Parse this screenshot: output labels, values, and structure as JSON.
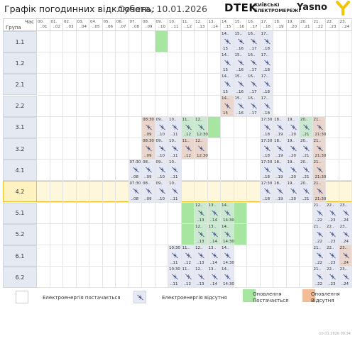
{
  "header": {
    "title": "Графік погодинних відключень:",
    "date": "Субота, 10.01.2026",
    "dtek": "DTEK",
    "kyiv_line1": "КИЇВСЬКІ",
    "kyiv_line2": "ЕЛЕКТРОМЕРЕЖІ",
    "yasno": "Yasno"
  },
  "table": {
    "col_header_top": "Час",
    "col_header_bottom": "Група",
    "hours": [
      {
        "a": "00.",
        "b": "..01"
      },
      {
        "a": "01.",
        "b": "..02"
      },
      {
        "a": "02.",
        "b": "..03"
      },
      {
        "a": "03.",
        "b": "..04"
      },
      {
        "a": "04.",
        "b": "..05"
      },
      {
        "a": "05.",
        "b": "..06"
      },
      {
        "a": "06.",
        "b": "..07"
      },
      {
        "a": "07.",
        "b": "..08"
      },
      {
        "a": "08.",
        "b": "..09"
      },
      {
        "a": "09.",
        "b": "..10"
      },
      {
        "a": "10.",
        "b": "..11"
      },
      {
        "a": "11.",
        "b": "..12"
      },
      {
        "a": "12.",
        "b": "..13"
      },
      {
        "a": "13.",
        "b": "..14"
      },
      {
        "a": "14.",
        "b": "..15"
      },
      {
        "a": "15.",
        "b": "..16"
      },
      {
        "a": "16.",
        "b": "..17"
      },
      {
        "a": "17.",
        "b": "..18"
      },
      {
        "a": "18.",
        "b": "..19"
      },
      {
        "a": "19.",
        "b": "..20"
      },
      {
        "a": "20.",
        "b": "..21"
      },
      {
        "a": "21.",
        "b": "..22"
      },
      {
        "a": "22.",
        "b": "..23"
      },
      {
        "a": "23.",
        "b": "..24"
      }
    ],
    "groups": [
      {
        "label": "1.1",
        "highlight": false,
        "cells": [
          {
            "h": 9,
            "t": "pg"
          },
          {
            "h": 14,
            "t": "off",
            "tl": "14..",
            "bl": "15"
          },
          {
            "h": 15,
            "t": "off",
            "tl": "15..",
            "bl": "..16"
          },
          {
            "h": 16,
            "t": "off",
            "tl": "16..",
            "bl": "..17"
          },
          {
            "h": 17,
            "t": "off",
            "tl": "17..",
            "bl": "..18"
          }
        ]
      },
      {
        "label": "1.2",
        "highlight": false,
        "cells": [
          {
            "h": 14,
            "t": "off",
            "tl": "14..",
            "bl": "15"
          },
          {
            "h": 15,
            "t": "off",
            "tl": "15..",
            "bl": "..16"
          },
          {
            "h": 16,
            "t": "off",
            "tl": "16..",
            "bl": "..17"
          },
          {
            "h": 17,
            "t": "off",
            "tl": "17..",
            "bl": "..18"
          }
        ]
      },
      {
        "label": "2.1",
        "highlight": false,
        "cells": [
          {
            "h": 14,
            "t": "off",
            "tl": "14..",
            "bl": "15"
          },
          {
            "h": 15,
            "t": "off",
            "tl": "15..",
            "bl": "..16"
          },
          {
            "h": 16,
            "t": "off",
            "tl": "16..",
            "bl": "..17"
          },
          {
            "h": 17,
            "t": "off",
            "tl": "17..",
            "bl": "..18"
          }
        ]
      },
      {
        "label": "2.2",
        "highlight": false,
        "cells": [
          {
            "h": 14,
            "t": "po off",
            "tl": "14..",
            "bl": "15"
          },
          {
            "h": 15,
            "t": "off",
            "tl": "15..",
            "bl": "..16"
          },
          {
            "h": 16,
            "t": "off",
            "tl": "16..",
            "bl": "..17"
          },
          {
            "h": 17,
            "t": "off",
            "tl": "17..",
            "bl": "..18"
          }
        ]
      },
      {
        "label": "3.1",
        "highlight": false,
        "cells": [
          {
            "h": 8,
            "t": "po off",
            "tl": "08:30",
            "bl": "..09"
          },
          {
            "h": 9,
            "t": "off",
            "tl": "09..",
            "bl": "..10"
          },
          {
            "h": 10,
            "t": "off",
            "tl": "10..",
            "bl": "..11"
          },
          {
            "h": 11,
            "t": "pg off",
            "tl": "11..",
            "bl": "..12"
          },
          {
            "h": 12,
            "t": "pg off",
            "tl": "12..",
            "bl": "12:30"
          },
          {
            "h": 13,
            "t": "pg"
          },
          {
            "h": 17,
            "t": "off",
            "tl": "17:30",
            "bl": "..18"
          },
          {
            "h": 18,
            "t": "off",
            "tl": "18..",
            "bl": "..19"
          },
          {
            "h": 19,
            "t": "off",
            "tl": "19..",
            "bl": "..20"
          },
          {
            "h": 20,
            "t": "pg off",
            "tl": "20..",
            "bl": "..21"
          },
          {
            "h": 21,
            "t": "po off",
            "tl": "21..",
            "bl": "21:30"
          }
        ]
      },
      {
        "label": "3.2",
        "highlight": false,
        "cells": [
          {
            "h": 8,
            "t": "po off",
            "tl": "08:30",
            "bl": "..09"
          },
          {
            "h": 9,
            "t": "off",
            "tl": "09..",
            "bl": "..10"
          },
          {
            "h": 10,
            "t": "off",
            "tl": "10..",
            "bl": "..11"
          },
          {
            "h": 11,
            "t": "po off",
            "tl": "11..",
            "bl": "..12"
          },
          {
            "h": 12,
            "t": "po off",
            "tl": "12..",
            "bl": "12:30"
          },
          {
            "h": 17,
            "t": "off",
            "tl": "17:30",
            "bl": "..18"
          },
          {
            "h": 18,
            "t": "off",
            "tl": "18..",
            "bl": "..19"
          },
          {
            "h": 19,
            "t": "off",
            "tl": "19..",
            "bl": "..20"
          },
          {
            "h": 20,
            "t": "off",
            "tl": "20..",
            "bl": "..21"
          },
          {
            "h": 21,
            "t": "po off",
            "tl": "21..",
            "bl": "21:30"
          }
        ]
      },
      {
        "label": "4.1",
        "highlight": false,
        "cells": [
          {
            "h": 7,
            "t": "off",
            "tl": "07:30",
            "bl": "..08"
          },
          {
            "h": 8,
            "t": "off",
            "tl": "08..",
            "bl": "..09"
          },
          {
            "h": 9,
            "t": "off",
            "tl": "09..",
            "bl": "..10"
          },
          {
            "h": 10,
            "t": "off",
            "tl": "10..",
            "bl": "..11"
          },
          {
            "h": 17,
            "t": "off",
            "tl": "17:30",
            "bl": "..18"
          },
          {
            "h": 18,
            "t": "off",
            "tl": "18..",
            "bl": "..19"
          },
          {
            "h": 19,
            "t": "off",
            "tl": "19..",
            "bl": "..20"
          },
          {
            "h": 20,
            "t": "off",
            "tl": "20..",
            "bl": "..21"
          },
          {
            "h": 21,
            "t": "po off",
            "tl": "21..",
            "bl": "21:30"
          }
        ]
      },
      {
        "label": "4.2",
        "highlight": true,
        "cells": [
          {
            "h": 7,
            "t": "off",
            "tl": "07:30",
            "bl": "..08"
          },
          {
            "h": 8,
            "t": "off",
            "tl": "08..",
            "bl": "..09"
          },
          {
            "h": 9,
            "t": "off",
            "tl": "09..",
            "bl": "..10"
          },
          {
            "h": 10,
            "t": "off",
            "tl": "10..",
            "bl": "..11"
          },
          {
            "h": 17,
            "t": "off",
            "tl": "17:30",
            "bl": "..18"
          },
          {
            "h": 18,
            "t": "off",
            "tl": "18..",
            "bl": "..19"
          },
          {
            "h": 19,
            "t": "off",
            "tl": "19..",
            "bl": "..20"
          },
          {
            "h": 20,
            "t": "off",
            "tl": "20..",
            "bl": "..21"
          },
          {
            "h": 21,
            "t": "po off",
            "tl": "21..",
            "bl": "21:30"
          }
        ]
      },
      {
        "label": "5.1",
        "highlight": false,
        "cells": [
          {
            "h": 11,
            "t": "pg"
          },
          {
            "h": 12,
            "t": "pg off",
            "tl": "12..",
            "bl": "..13"
          },
          {
            "h": 13,
            "t": "pg off",
            "tl": "13..",
            "bl": "..14"
          },
          {
            "h": 14,
            "t": "pg off",
            "tl": "14..",
            "bl": "14:30"
          },
          {
            "h": 15,
            "t": "pg"
          },
          {
            "h": 21,
            "t": "off",
            "tl": "21..",
            "bl": "..22"
          },
          {
            "h": 22,
            "t": "off",
            "tl": "22..",
            "bl": "..23"
          },
          {
            "h": 23,
            "t": "off",
            "tl": "23..",
            "bl": "..24"
          }
        ]
      },
      {
        "label": "5.2",
        "highlight": false,
        "cells": [
          {
            "h": 11,
            "t": "pg"
          },
          {
            "h": 12,
            "t": "pg off",
            "tl": "12..",
            "bl": "..13"
          },
          {
            "h": 13,
            "t": "pg off",
            "tl": "13..",
            "bl": "..14"
          },
          {
            "h": 14,
            "t": "pg off",
            "tl": "14..",
            "bl": "14:30"
          },
          {
            "h": 15,
            "t": "pg"
          },
          {
            "h": 21,
            "t": "off",
            "tl": "21..",
            "bl": "..22"
          },
          {
            "h": 22,
            "t": "off",
            "tl": "22..",
            "bl": "..23"
          },
          {
            "h": 23,
            "t": "off",
            "tl": "23..",
            "bl": "..24"
          }
        ]
      },
      {
        "label": "6.1",
        "highlight": false,
        "cells": [
          {
            "h": 10,
            "t": "off",
            "tl": "10:30",
            "bl": "..11"
          },
          {
            "h": 11,
            "t": "off",
            "tl": "11..",
            "bl": "..12"
          },
          {
            "h": 12,
            "t": "off",
            "tl": "12..",
            "bl": "..13"
          },
          {
            "h": 13,
            "t": "off",
            "tl": "13..",
            "bl": "..14"
          },
          {
            "h": 14,
            "t": "off",
            "tl": "14..",
            "bl": "14:30"
          },
          {
            "h": 21,
            "t": "off",
            "tl": "21..",
            "bl": "..22"
          },
          {
            "h": 22,
            "t": "off",
            "tl": "22..",
            "bl": "..23"
          },
          {
            "h": 23,
            "t": "po off",
            "tl": "23..",
            "bl": "..24"
          }
        ]
      },
      {
        "label": "6.2",
        "highlight": false,
        "cells": [
          {
            "h": 10,
            "t": "off",
            "tl": "10:30",
            "bl": "..11"
          },
          {
            "h": 11,
            "t": "off",
            "tl": "11..",
            "bl": "..12"
          },
          {
            "h": 12,
            "t": "off",
            "tl": "12..",
            "bl": "..13"
          },
          {
            "h": 13,
            "t": "off",
            "tl": "13..",
            "bl": "..14"
          },
          {
            "h": 14,
            "t": "off",
            "tl": "14..",
            "bl": "14:30"
          },
          {
            "h": 21,
            "t": "off",
            "tl": "21..",
            "bl": "..22"
          },
          {
            "h": 22,
            "t": "off",
            "tl": "22..",
            "bl": "..23"
          },
          {
            "h": 23,
            "t": "off",
            "tl": "23..",
            "bl": "..24"
          }
        ]
      }
    ]
  },
  "legend": {
    "on": "Електроенергія постачається",
    "off": "Електроенергія відсутня",
    "update_on_1": "Оновлення",
    "update_on_2": "Постачається",
    "update_off_1": "Оновлення",
    "update_off_2": "Відсутня"
  },
  "footer": "10.01.2026   09:34",
  "colors": {
    "off": "#e6e8f3",
    "update_on": "#a7e6a0",
    "update_off": "#f2bd96",
    "highlight": "#f0c02a",
    "group_bg": "#e4e9f2"
  },
  "icons": {
    "outage": "no-power-icon"
  }
}
